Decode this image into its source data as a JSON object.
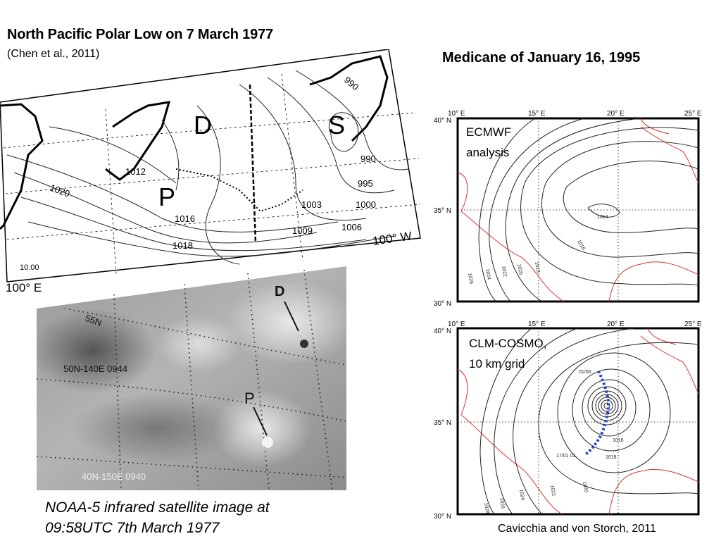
{
  "left": {
    "title": "North Pacific Polar Low on 7 March 1977",
    "subtitle": "(Chen et al., 2011)",
    "map": {
      "markers": [
        "D",
        "S",
        "P"
      ],
      "isobar_labels": [
        "990",
        "990",
        "995",
        "1000",
        "1003",
        "1006",
        "1009",
        "1012",
        "1016",
        "1018",
        "1020",
        "10.00"
      ],
      "corner_labels": [
        "100° E",
        "100° W"
      ]
    },
    "satellite": {
      "markers": [
        "D",
        "P"
      ],
      "grid_labels": [
        "55N",
        "50N-140E 0944",
        "40N-150E 0940"
      ]
    },
    "caption_line1": "NOAA-5 infrared satellite image at",
    "caption_line2": "09:58UTC 7th March 1977"
  },
  "right": {
    "title": "Medicane of January 16, 1995",
    "panels": [
      {
        "label_line1": "ECMWF",
        "label_line2": "analysis",
        "lon_labels": [
          "10° E",
          "15° E",
          "20° E",
          "25° E"
        ],
        "lat_labels": [
          "40° N",
          "35° N",
          "30° N"
        ],
        "isobar_labels": [
          "1014",
          "1016",
          "1018",
          "1020",
          "1022",
          "1024",
          "1026"
        ]
      },
      {
        "label_line1": "CLM-COSMO,",
        "label_line2": "10 km grid",
        "lon_labels": [
          "10° E",
          "15° E",
          "20° E",
          "25° E"
        ],
        "lat_labels": [
          "40° N",
          "35° N",
          "30° N"
        ],
        "isobar_labels": [
          "1016",
          "1018",
          "1020",
          "1022",
          "1024",
          "1026",
          "1028"
        ],
        "track_labels": [
          "01/00",
          "17/01 01"
        ]
      }
    ],
    "credit": "Cavicchia and von Storch, 2011"
  },
  "colors": {
    "coast_red": "#e0302a",
    "track_blue": "#2040d0",
    "contour": "#222222"
  }
}
